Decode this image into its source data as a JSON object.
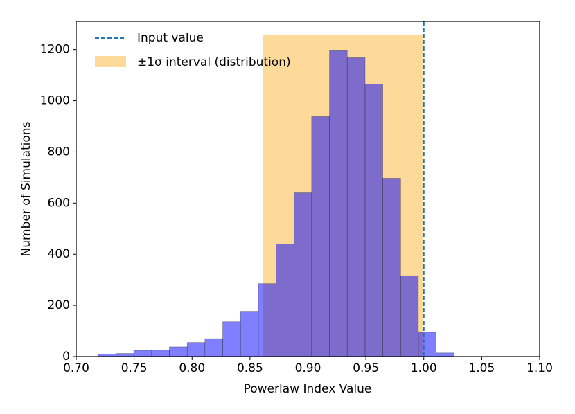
{
  "chart_data": {
    "type": "histogram",
    "xlabel": "Powerlaw Index Value",
    "ylabel": "Number of Simulations",
    "bins": [
      0.719,
      0.7344,
      0.7497,
      0.7651,
      0.7804,
      0.7958,
      0.8111,
      0.8265,
      0.8418,
      0.8572,
      0.8725,
      0.8879,
      0.9032,
      0.9186,
      0.9339,
      0.9493,
      0.9646,
      0.98,
      0.9953,
      1.0107,
      1.026
    ],
    "counts": [
      10,
      12,
      24,
      25,
      38,
      55,
      70,
      136,
      177,
      285,
      440,
      640,
      938,
      1198,
      1168,
      1065,
      697,
      316,
      95,
      14
    ],
    "color": "#0000ff",
    "input_value": 1.0,
    "input_label": "Input value",
    "input_color": "#1f77b4",
    "interval": [
      0.861,
      0.999
    ],
    "interval_top": 1258,
    "interval_label": "±1σ interval (distribution)",
    "interval_color": "#fdd99a",
    "legend": "upper left",
    "xlim": [
      0.7,
      1.1
    ],
    "ylim": [
      0,
      1310
    ],
    "xticks": [
      {
        "value": 0.7,
        "label": "0.70"
      },
      0.75,
      {
        "value": 0.8,
        "label": "0.80"
      },
      0.85,
      {
        "value": 0.9,
        "label": "0.90"
      },
      0.95,
      {
        "value": 1.0,
        "label": "1.00"
      },
      1.05,
      {
        "value": 1.1,
        "label": "1.10"
      }
    ],
    "yticks": [
      0,
      200,
      400,
      600,
      800,
      1000,
      1200
    ]
  }
}
